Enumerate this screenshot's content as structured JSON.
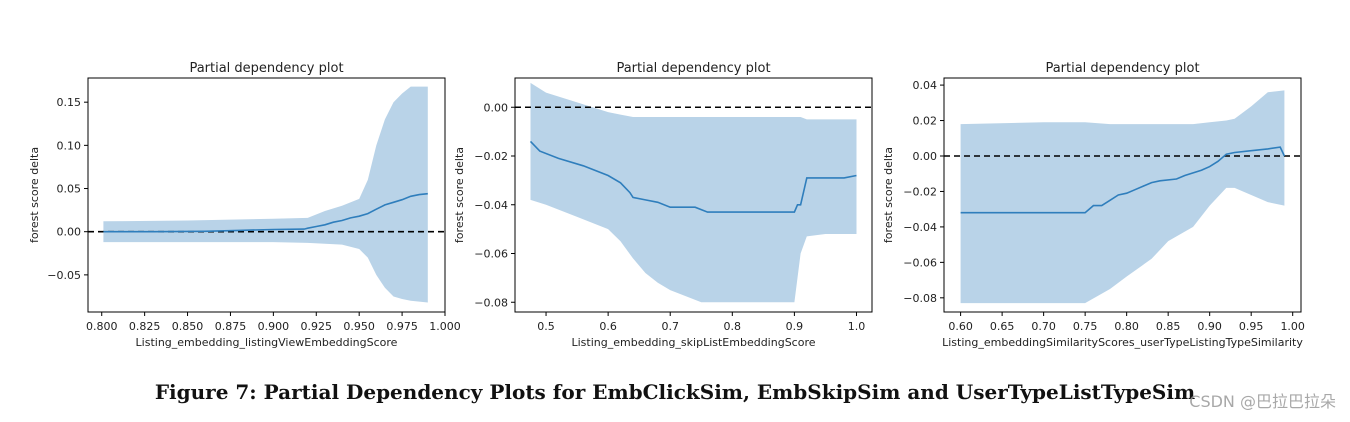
{
  "caption": "Figure 7: Partial Dependency Plots for EmbClickSim, EmbSkipSim and UserTypeListTypeSim",
  "watermark": "CSDN @巴拉巴拉朵",
  "colors": {
    "line": "#2f7ebc",
    "band": "#b9d3e8",
    "zero": "#000000",
    "axis": "#000000"
  },
  "chart_data": [
    {
      "type": "line",
      "title": "Partial dependency plot",
      "xlabel": "Listing_embedding_listingViewEmbeddingScore",
      "ylabel": "forest score delta",
      "xlim": [
        0.792,
        1.0
      ],
      "ylim": [
        -0.093,
        0.178
      ],
      "xticks": [
        0.8,
        0.825,
        0.85,
        0.875,
        0.9,
        0.925,
        0.95,
        0.975,
        1.0
      ],
      "xtick_labels": [
        "0.800",
        "0.825",
        "0.850",
        "0.875",
        "0.900",
        "0.925",
        "0.950",
        "0.975",
        "1.000"
      ],
      "yticks": [
        -0.05,
        0.0,
        0.05,
        0.1,
        0.15
      ],
      "ytick_labels": [
        "−0.05",
        "0.00",
        "0.05",
        "0.10",
        "0.15"
      ],
      "zero_line": 0,
      "series": [
        {
          "name": "mean",
          "x": [
            0.801,
            0.83,
            0.86,
            0.88,
            0.9,
            0.918,
            0.92,
            0.925,
            0.93,
            0.935,
            0.94,
            0.945,
            0.95,
            0.955,
            0.96,
            0.965,
            0.97,
            0.975,
            0.98,
            0.985,
            0.99
          ],
          "y": [
            0.0,
            0.0,
            0.0005,
            0.0015,
            0.0025,
            0.003,
            0.004,
            0.006,
            0.008,
            0.011,
            0.013,
            0.016,
            0.018,
            0.021,
            0.026,
            0.031,
            0.034,
            0.037,
            0.041,
            0.043,
            0.044
          ]
        }
      ],
      "band": {
        "x": [
          0.801,
          0.85,
          0.9,
          0.92,
          0.93,
          0.94,
          0.95,
          0.955,
          0.96,
          0.965,
          0.97,
          0.975,
          0.98,
          0.99
        ],
        "upper": [
          0.012,
          0.013,
          0.015,
          0.016,
          0.024,
          0.03,
          0.038,
          0.06,
          0.1,
          0.13,
          0.15,
          0.16,
          0.168,
          0.168
        ],
        "lower": [
          -0.012,
          -0.012,
          -0.012,
          -0.013,
          -0.014,
          -0.015,
          -0.02,
          -0.03,
          -0.05,
          -0.065,
          -0.075,
          -0.078,
          -0.08,
          -0.082
        ]
      }
    },
    {
      "type": "line",
      "title": "Partial dependency plot",
      "xlabel": "Listing_embedding_skipListEmbeddingScore",
      "ylabel": "forest score delta",
      "xlim": [
        0.45,
        1.025
      ],
      "ylim": [
        -0.084,
        0.012
      ],
      "xticks": [
        0.5,
        0.6,
        0.7,
        0.8,
        0.9,
        1.0
      ],
      "xtick_labels": [
        "0.5",
        "0.6",
        "0.7",
        "0.8",
        "0.9",
        "1.0"
      ],
      "yticks": [
        -0.08,
        -0.06,
        -0.04,
        -0.02,
        0.0
      ],
      "ytick_labels": [
        "−0.08",
        "−0.06",
        "−0.04",
        "−0.02",
        "0.00"
      ],
      "zero_line": 0,
      "series": [
        {
          "name": "mean",
          "x": [
            0.475,
            0.49,
            0.52,
            0.56,
            0.6,
            0.62,
            0.635,
            0.64,
            0.66,
            0.68,
            0.7,
            0.74,
            0.76,
            0.8,
            0.84,
            0.88,
            0.9,
            0.905,
            0.91,
            0.92,
            0.95,
            0.98,
            1.0
          ],
          "y": [
            -0.014,
            -0.018,
            -0.021,
            -0.024,
            -0.028,
            -0.031,
            -0.035,
            -0.037,
            -0.038,
            -0.039,
            -0.041,
            -0.041,
            -0.043,
            -0.043,
            -0.043,
            -0.043,
            -0.043,
            -0.04,
            -0.04,
            -0.029,
            -0.029,
            -0.029,
            -0.028
          ]
        }
      ],
      "band": {
        "x": [
          0.475,
          0.5,
          0.55,
          0.6,
          0.62,
          0.64,
          0.66,
          0.68,
          0.7,
          0.75,
          0.8,
          0.85,
          0.9,
          0.91,
          0.92,
          0.95,
          1.0
        ],
        "upper": [
          0.01,
          0.006,
          0.002,
          -0.002,
          -0.003,
          -0.004,
          -0.004,
          -0.004,
          -0.004,
          -0.004,
          -0.004,
          -0.004,
          -0.004,
          -0.004,
          -0.005,
          -0.005,
          -0.005
        ],
        "lower": [
          -0.038,
          -0.04,
          -0.045,
          -0.05,
          -0.055,
          -0.062,
          -0.068,
          -0.072,
          -0.075,
          -0.08,
          -0.08,
          -0.08,
          -0.08,
          -0.06,
          -0.053,
          -0.052,
          -0.052
        ]
      }
    },
    {
      "type": "line",
      "title": "Partial dependency plot",
      "xlabel": "Listing_embeddingSimilarityScores_userTypeListingTypeSimilarity",
      "ylabel": "forest score delta",
      "xlim": [
        0.58,
        1.01
      ],
      "ylim": [
        -0.088,
        0.044
      ],
      "xticks": [
        0.6,
        0.65,
        0.7,
        0.75,
        0.8,
        0.85,
        0.9,
        0.95,
        1.0
      ],
      "xtick_labels": [
        "0.60",
        "0.65",
        "0.70",
        "0.75",
        "0.80",
        "0.85",
        "0.90",
        "0.95",
        "1.00"
      ],
      "yticks": [
        -0.08,
        -0.06,
        -0.04,
        -0.02,
        0.0,
        0.02,
        0.04
      ],
      "ytick_labels": [
        "−0.08",
        "−0.06",
        "−0.04",
        "−0.02",
        "0.00",
        "0.02",
        "0.04"
      ],
      "zero_line": 0,
      "series": [
        {
          "name": "mean",
          "x": [
            0.6,
            0.65,
            0.7,
            0.75,
            0.76,
            0.77,
            0.78,
            0.79,
            0.8,
            0.81,
            0.82,
            0.83,
            0.84,
            0.86,
            0.87,
            0.89,
            0.9,
            0.91,
            0.92,
            0.93,
            0.95,
            0.97,
            0.985,
            0.99
          ],
          "y": [
            -0.032,
            -0.032,
            -0.032,
            -0.032,
            -0.028,
            -0.028,
            -0.025,
            -0.022,
            -0.021,
            -0.019,
            -0.017,
            -0.015,
            -0.014,
            -0.013,
            -0.011,
            -0.008,
            -0.006,
            -0.003,
            0.001,
            0.002,
            0.003,
            0.004,
            0.005,
            0.0
          ]
        }
      ],
      "band": {
        "x": [
          0.6,
          0.7,
          0.75,
          0.78,
          0.8,
          0.83,
          0.85,
          0.88,
          0.9,
          0.92,
          0.93,
          0.95,
          0.97,
          0.99
        ],
        "upper": [
          0.018,
          0.019,
          0.019,
          0.018,
          0.018,
          0.018,
          0.018,
          0.018,
          0.019,
          0.02,
          0.021,
          0.028,
          0.036,
          0.037
        ],
        "lower": [
          -0.083,
          -0.083,
          -0.083,
          -0.075,
          -0.068,
          -0.058,
          -0.048,
          -0.04,
          -0.028,
          -0.018,
          -0.018,
          -0.022,
          -0.026,
          -0.028
        ]
      }
    }
  ]
}
